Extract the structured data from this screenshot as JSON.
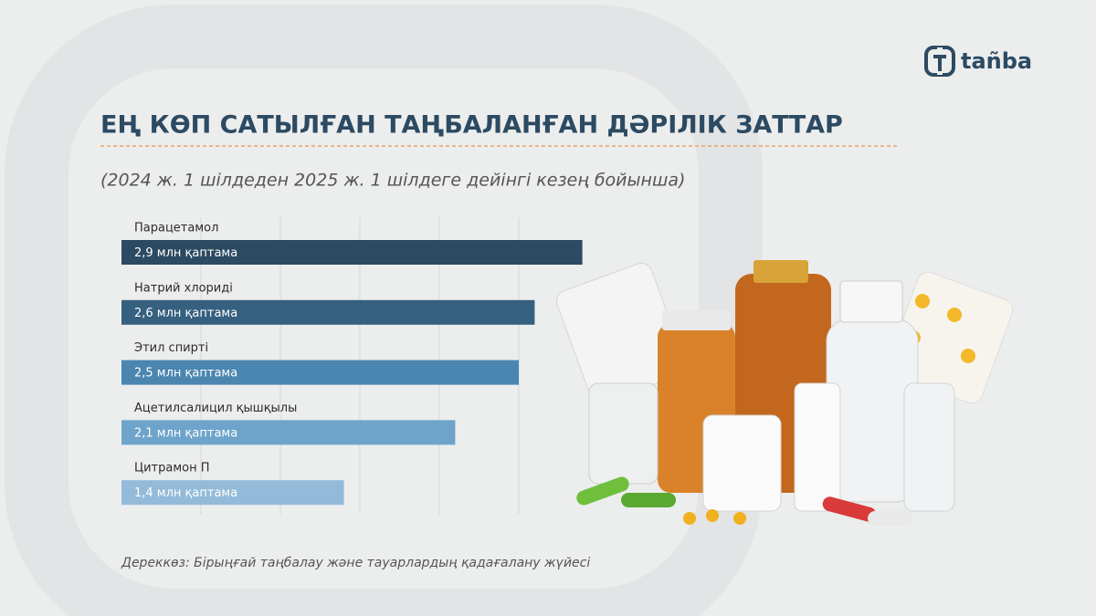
{
  "logo": "tañba",
  "chart_data": {
    "type": "bar",
    "orientation": "horizontal",
    "title": "ЕҢ КӨП САТЫЛҒАН ТАҢБАЛАНҒАН ДӘРІЛІК ЗАТТАР",
    "subtitle": "(2024 ж. 1 шілдеден 2025 ж. 1 шілдеге дейінгі кезең бойынша)",
    "source": "Дереккөз: Бірыңғай таңбалау және тауарлардың қадағалану жүйесі",
    "categories": [
      "Парацетамол",
      "Натрий хлориді",
      "Этил спирті",
      "Ацетилсалицил қышқылы",
      "Цитрамон П"
    ],
    "values": [
      2.9,
      2.6,
      2.5,
      2.1,
      1.4
    ],
    "value_labels": [
      "2,9 млн қаптама",
      "2,6 млн қаптама",
      "2,5 млн қаптама",
      "2,1 млн қаптама",
      "1,4 млн қаптама"
    ],
    "colors": [
      "#2c4a62",
      "#35607f",
      "#4a86b0",
      "#6ea4cb",
      "#93bbd9"
    ],
    "xlim": [
      0,
      3
    ],
    "xticks": [
      0.5,
      1,
      1.5,
      2,
      2.5
    ],
    "grid": true
  }
}
